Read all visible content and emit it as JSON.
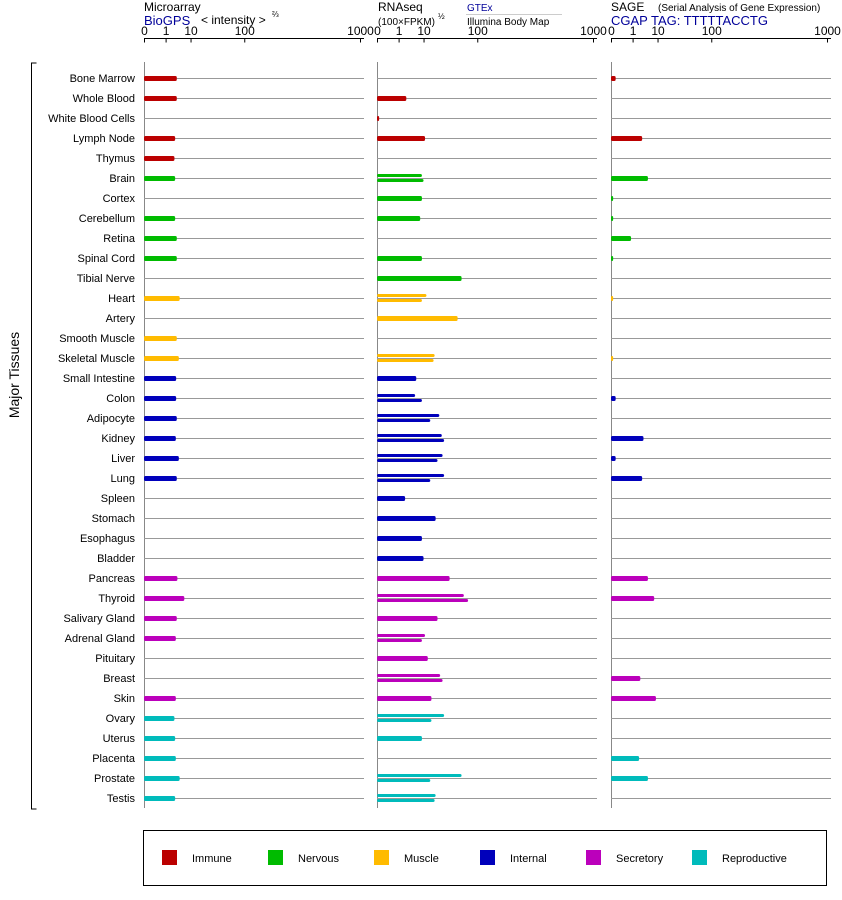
{
  "header": {
    "microarray": {
      "title": "Microarray",
      "source": "BioGPS",
      "unit": "< intensity >",
      "unit_exp": "⅔"
    },
    "rnaseq": {
      "title": "RNAseq",
      "unit": "(100×FPKM)",
      "unit_exp": "½",
      "source1": "GTEx",
      "source2": "Illumina Body Map"
    },
    "sage": {
      "title": "SAGE",
      "subtitle": "(Serial Analysis of Gene Expression)",
      "tag": "CGAP TAG: TTTTTACCTG"
    }
  },
  "side_label": "Major Tissues",
  "colors": {
    "immune": "#bb0000",
    "nervous": "#00bb00",
    "muscle": "#ffbb00",
    "internal": "#0000bb",
    "secretory": "#bb00bb",
    "reproductive": "#00bbbb"
  },
  "legend": [
    {
      "key": "immune",
      "label": "Immune"
    },
    {
      "key": "nervous",
      "label": "Nervous"
    },
    {
      "key": "muscle",
      "label": "Muscle"
    },
    {
      "key": "internal",
      "label": "Internal"
    },
    {
      "key": "secretory",
      "label": "Secretory"
    },
    {
      "key": "reproductive",
      "label": "Reproductive"
    }
  ],
  "chart_data": {
    "type": "bar",
    "orientation": "horizontal",
    "axis_ticks": [
      "0",
      "1",
      "10",
      "100",
      "1000"
    ],
    "axis_scale": "cube-root",
    "axis_range": [
      0,
      1000
    ],
    "panels": [
      "Microarray",
      "RNAseq",
      "SAGE"
    ],
    "tissues": [
      {
        "name": "Bone Marrow",
        "group": "immune",
        "microarray": [
          3.5
        ],
        "rnaseq": [],
        "sage": [
          0.01
        ]
      },
      {
        "name": "Whole Blood",
        "group": "immune",
        "microarray": [
          3.5
        ],
        "rnaseq": [
          2.5
        ],
        "sage": []
      },
      {
        "name": "White Blood Cells",
        "group": "immune",
        "microarray": [],
        "rnaseq": [
          0.001
        ],
        "sage": []
      },
      {
        "name": "Lymph Node",
        "group": "immune",
        "microarray": [
          3
        ],
        "rnaseq": [
          11
        ],
        "sage": [
          3
        ]
      },
      {
        "name": "Thymus",
        "group": "immune",
        "microarray": [
          2.8
        ],
        "rnaseq": [],
        "sage": []
      },
      {
        "name": "Brain",
        "group": "nervous",
        "microarray": [
          3
        ],
        "rnaseq": [
          9,
          10
        ],
        "sage": [
          5
        ]
      },
      {
        "name": "Cortex",
        "group": "nervous",
        "microarray": [],
        "rnaseq": [
          9
        ],
        "sage": [
          0.001
        ]
      },
      {
        "name": "Cerebellum",
        "group": "nervous",
        "microarray": [
          3
        ],
        "rnaseq": [
          8
        ],
        "sage": [
          0.001
        ]
      },
      {
        "name": "Retina",
        "group": "nervous",
        "microarray": [
          3.5
        ],
        "rnaseq": [],
        "sage": [
          0.8
        ]
      },
      {
        "name": "Spinal Cord",
        "group": "nervous",
        "microarray": [
          3.5
        ],
        "rnaseq": [
          9
        ],
        "sage": [
          0.001
        ]
      },
      {
        "name": "Tibial Nerve",
        "group": "nervous",
        "microarray": [],
        "rnaseq": [
          60
        ],
        "sage": []
      },
      {
        "name": "Heart",
        "group": "muscle",
        "microarray": [
          4.5
        ],
        "rnaseq": [
          12,
          9
        ],
        "sage": [
          0.001
        ]
      },
      {
        "name": "Artery",
        "group": "muscle",
        "microarray": [],
        "rnaseq": [
          52
        ],
        "sage": []
      },
      {
        "name": "Smooth Muscle",
        "group": "muscle",
        "microarray": [
          3.5
        ],
        "rnaseq": [],
        "sage": []
      },
      {
        "name": "Skeletal Muscle",
        "group": "muscle",
        "microarray": [
          4.2
        ],
        "rnaseq": [
          19,
          18
        ],
        "sage": [
          0.001
        ]
      },
      {
        "name": "Small Intestine",
        "group": "internal",
        "microarray": [
          3.3
        ],
        "rnaseq": [
          6
        ],
        "sage": []
      },
      {
        "name": "Colon",
        "group": "internal",
        "microarray": [
          3.3
        ],
        "rnaseq": [
          5.5,
          9
        ],
        "sage": [
          0.01
        ]
      },
      {
        "name": "Adipocyte",
        "group": "internal",
        "microarray": [
          3.5
        ],
        "rnaseq": [
          24,
          15
        ],
        "sage": []
      },
      {
        "name": "Kidney",
        "group": "internal",
        "microarray": [
          3.2
        ],
        "rnaseq": [
          27,
          30
        ],
        "sage": [
          3.4
        ]
      },
      {
        "name": "Liver",
        "group": "internal",
        "microarray": [
          4.2
        ],
        "rnaseq": [
          28,
          22
        ],
        "sage": [
          0.01
        ]
      },
      {
        "name": "Lung",
        "group": "internal",
        "microarray": [
          3.5
        ],
        "rnaseq": [
          30,
          15
        ],
        "sage": [
          3
        ]
      },
      {
        "name": "Spleen",
        "group": "internal",
        "microarray": [],
        "rnaseq": [
          2.2
        ],
        "sage": []
      },
      {
        "name": "Stomach",
        "group": "internal",
        "microarray": [],
        "rnaseq": [
          20
        ],
        "sage": []
      },
      {
        "name": "Esophagus",
        "group": "internal",
        "microarray": [],
        "rnaseq": [
          9
        ],
        "sage": []
      },
      {
        "name": "Bladder",
        "group": "internal",
        "microarray": [],
        "rnaseq": [
          10
        ],
        "sage": []
      },
      {
        "name": "Pancreas",
        "group": "secretory",
        "microarray": [
          3.7
        ],
        "rnaseq": [
          38
        ],
        "sage": [
          5
        ]
      },
      {
        "name": "Thyroid",
        "group": "secretory",
        "microarray": [
          6.5
        ],
        "rnaseq": [
          65,
          75
        ],
        "sage": [
          8
        ]
      },
      {
        "name": "Salivary Gland",
        "group": "secretory",
        "microarray": [
          3.5
        ],
        "rnaseq": [
          22
        ],
        "sage": []
      },
      {
        "name": "Adrenal Gland",
        "group": "secretory",
        "microarray": [
          3.2
        ],
        "rnaseq": [
          11,
          9
        ],
        "sage": []
      },
      {
        "name": "Pituitary",
        "group": "secretory",
        "microarray": [],
        "rnaseq": [
          13
        ],
        "sage": []
      },
      {
        "name": "Breast",
        "group": "secretory",
        "microarray": [],
        "rnaseq": [
          25,
          28
        ],
        "sage": [
          2.5
        ]
      },
      {
        "name": "Skin",
        "group": "secretory",
        "microarray": [
          3.2
        ],
        "rnaseq": [
          16
        ],
        "sage": [
          9
        ]
      },
      {
        "name": "Ovary",
        "group": "reproductive",
        "microarray": [
          2.8
        ],
        "rnaseq": [
          30,
          16
        ],
        "sage": []
      },
      {
        "name": "Uterus",
        "group": "reproductive",
        "microarray": [
          3
        ],
        "rnaseq": [
          9
        ],
        "sage": []
      },
      {
        "name": "Placenta",
        "group": "reproductive",
        "microarray": [
          3.2
        ],
        "rnaseq": [],
        "sage": [
          2.2
        ]
      },
      {
        "name": "Prostate",
        "group": "reproductive",
        "microarray": [
          4.5
        ],
        "rnaseq": [
          60,
          15
        ],
        "sage": [
          5
        ]
      },
      {
        "name": "Testis",
        "group": "reproductive",
        "microarray": [
          3
        ],
        "rnaseq": [
          20,
          19
        ],
        "sage": []
      }
    ]
  }
}
